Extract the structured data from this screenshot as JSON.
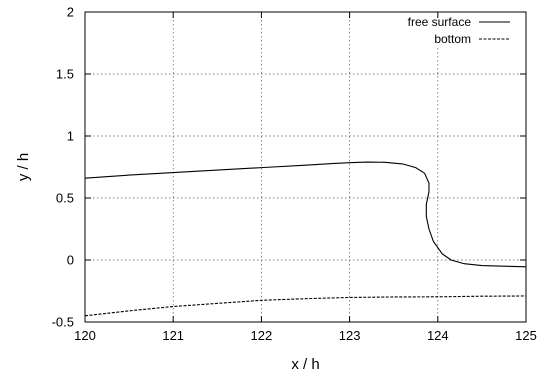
{
  "chart_data": {
    "type": "line",
    "title": "",
    "xlabel": "x / h",
    "ylabel": "y / h",
    "xlim": [
      120,
      125
    ],
    "ylim": [
      -0.5,
      2
    ],
    "x_ticks": [
      120,
      121,
      122,
      123,
      124,
      125
    ],
    "x_tick_labels": [
      "120",
      "121",
      "122",
      "123",
      "124",
      "125"
    ],
    "y_ticks": [
      -0.5,
      0,
      0.5,
      1,
      1.5,
      2
    ],
    "y_tick_labels": [
      "-0.5",
      "0",
      "0.5",
      "1",
      "1.5",
      "2"
    ],
    "grid": true,
    "legend_position": "top-right",
    "series": [
      {
        "name": "free surface",
        "style": "solid",
        "color": "#000000",
        "points": [
          [
            120.0,
            0.66
          ],
          [
            120.5,
            0.685
          ],
          [
            121.0,
            0.705
          ],
          [
            121.5,
            0.725
          ],
          [
            122.0,
            0.745
          ],
          [
            122.5,
            0.765
          ],
          [
            122.8,
            0.778
          ],
          [
            123.0,
            0.785
          ],
          [
            123.2,
            0.79
          ],
          [
            123.4,
            0.788
          ],
          [
            123.6,
            0.775
          ],
          [
            123.75,
            0.745
          ],
          [
            123.85,
            0.7
          ],
          [
            123.9,
            0.62
          ],
          [
            123.9,
            0.55
          ],
          [
            123.87,
            0.45
          ],
          [
            123.87,
            0.35
          ],
          [
            123.9,
            0.25
          ],
          [
            123.95,
            0.15
          ],
          [
            124.05,
            0.05
          ],
          [
            124.15,
            0.0
          ],
          [
            124.3,
            -0.03
          ],
          [
            124.5,
            -0.045
          ],
          [
            124.75,
            -0.05
          ],
          [
            125.0,
            -0.055
          ]
        ]
      },
      {
        "name": "bottom",
        "style": "dashed",
        "color": "#000000",
        "points": [
          [
            120.0,
            -0.45
          ],
          [
            120.5,
            -0.41
          ],
          [
            121.0,
            -0.375
          ],
          [
            121.5,
            -0.35
          ],
          [
            122.0,
            -0.325
          ],
          [
            122.5,
            -0.312
          ],
          [
            123.0,
            -0.302
          ],
          [
            123.5,
            -0.298
          ],
          [
            124.0,
            -0.297
          ],
          [
            124.5,
            -0.292
          ],
          [
            125.0,
            -0.29
          ]
        ]
      }
    ]
  }
}
